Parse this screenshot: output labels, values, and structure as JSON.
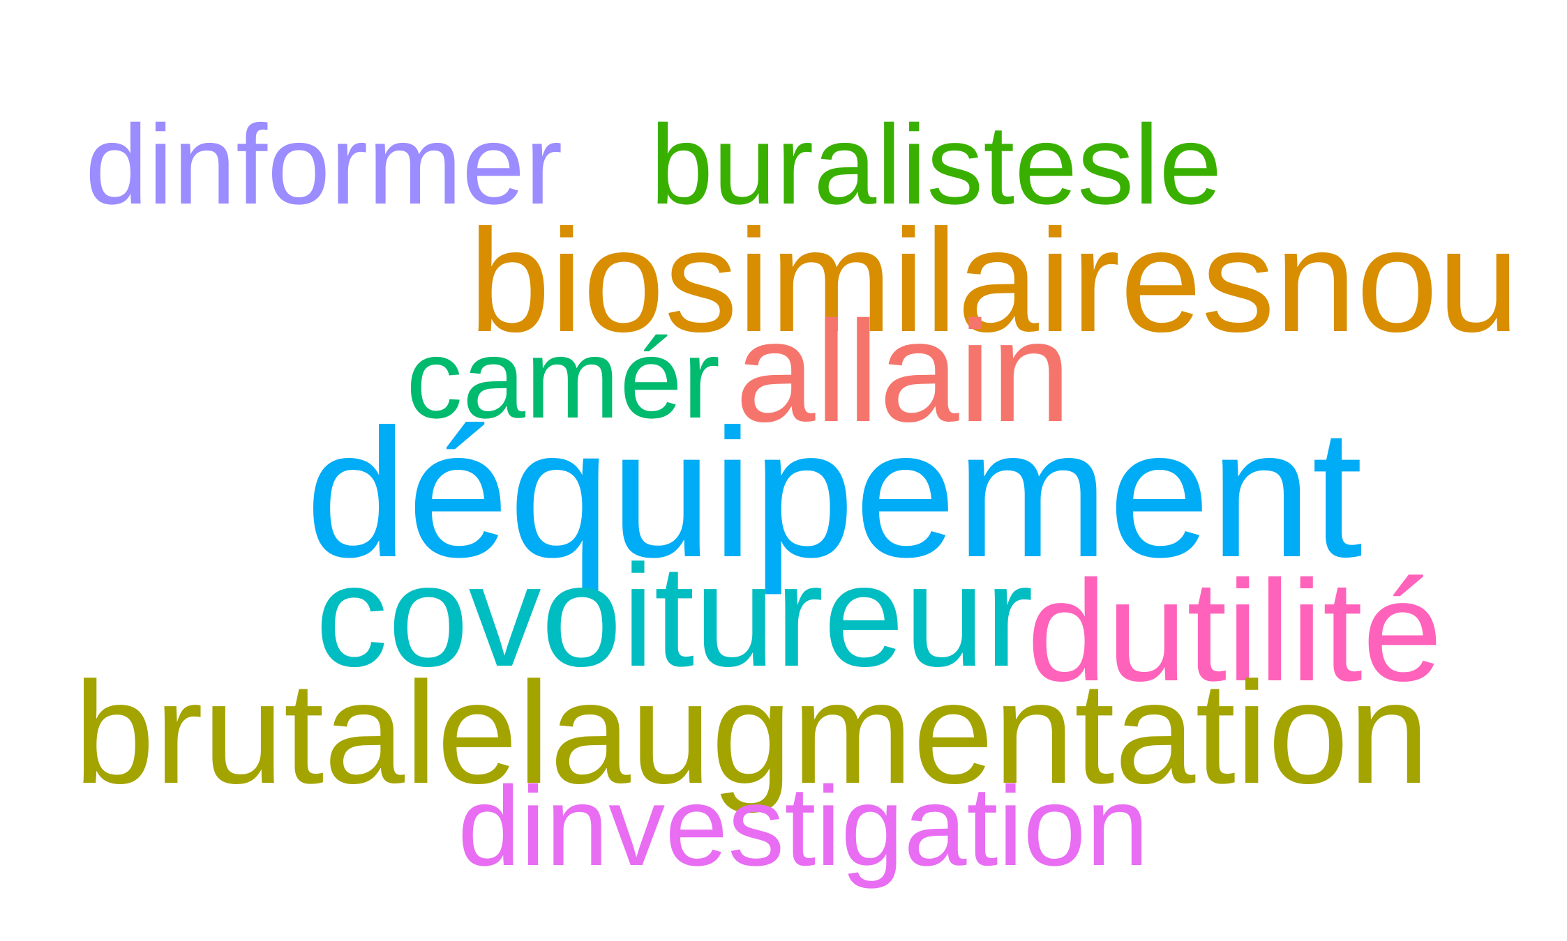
{
  "words": [
    {
      "text": "dinformer",
      "color": "#9B8CFF"
    },
    {
      "text": "buralistesle",
      "color": "#39B000"
    },
    {
      "text": "biosimilairesnou",
      "color": "#D88E00"
    },
    {
      "text": "camér",
      "color": "#00BA6E"
    },
    {
      "text": "allain",
      "color": "#F5756D"
    },
    {
      "text": "déquipement",
      "color": "#00ACF5"
    },
    {
      "text": "covoitureur",
      "color": "#00BDC1"
    },
    {
      "text": "dutilité",
      "color": "#FF62BB"
    },
    {
      "text": "brutalelaugmentation",
      "color": "#A3A400"
    },
    {
      "text": "dinvestigation",
      "color": "#E86DF3"
    }
  ]
}
